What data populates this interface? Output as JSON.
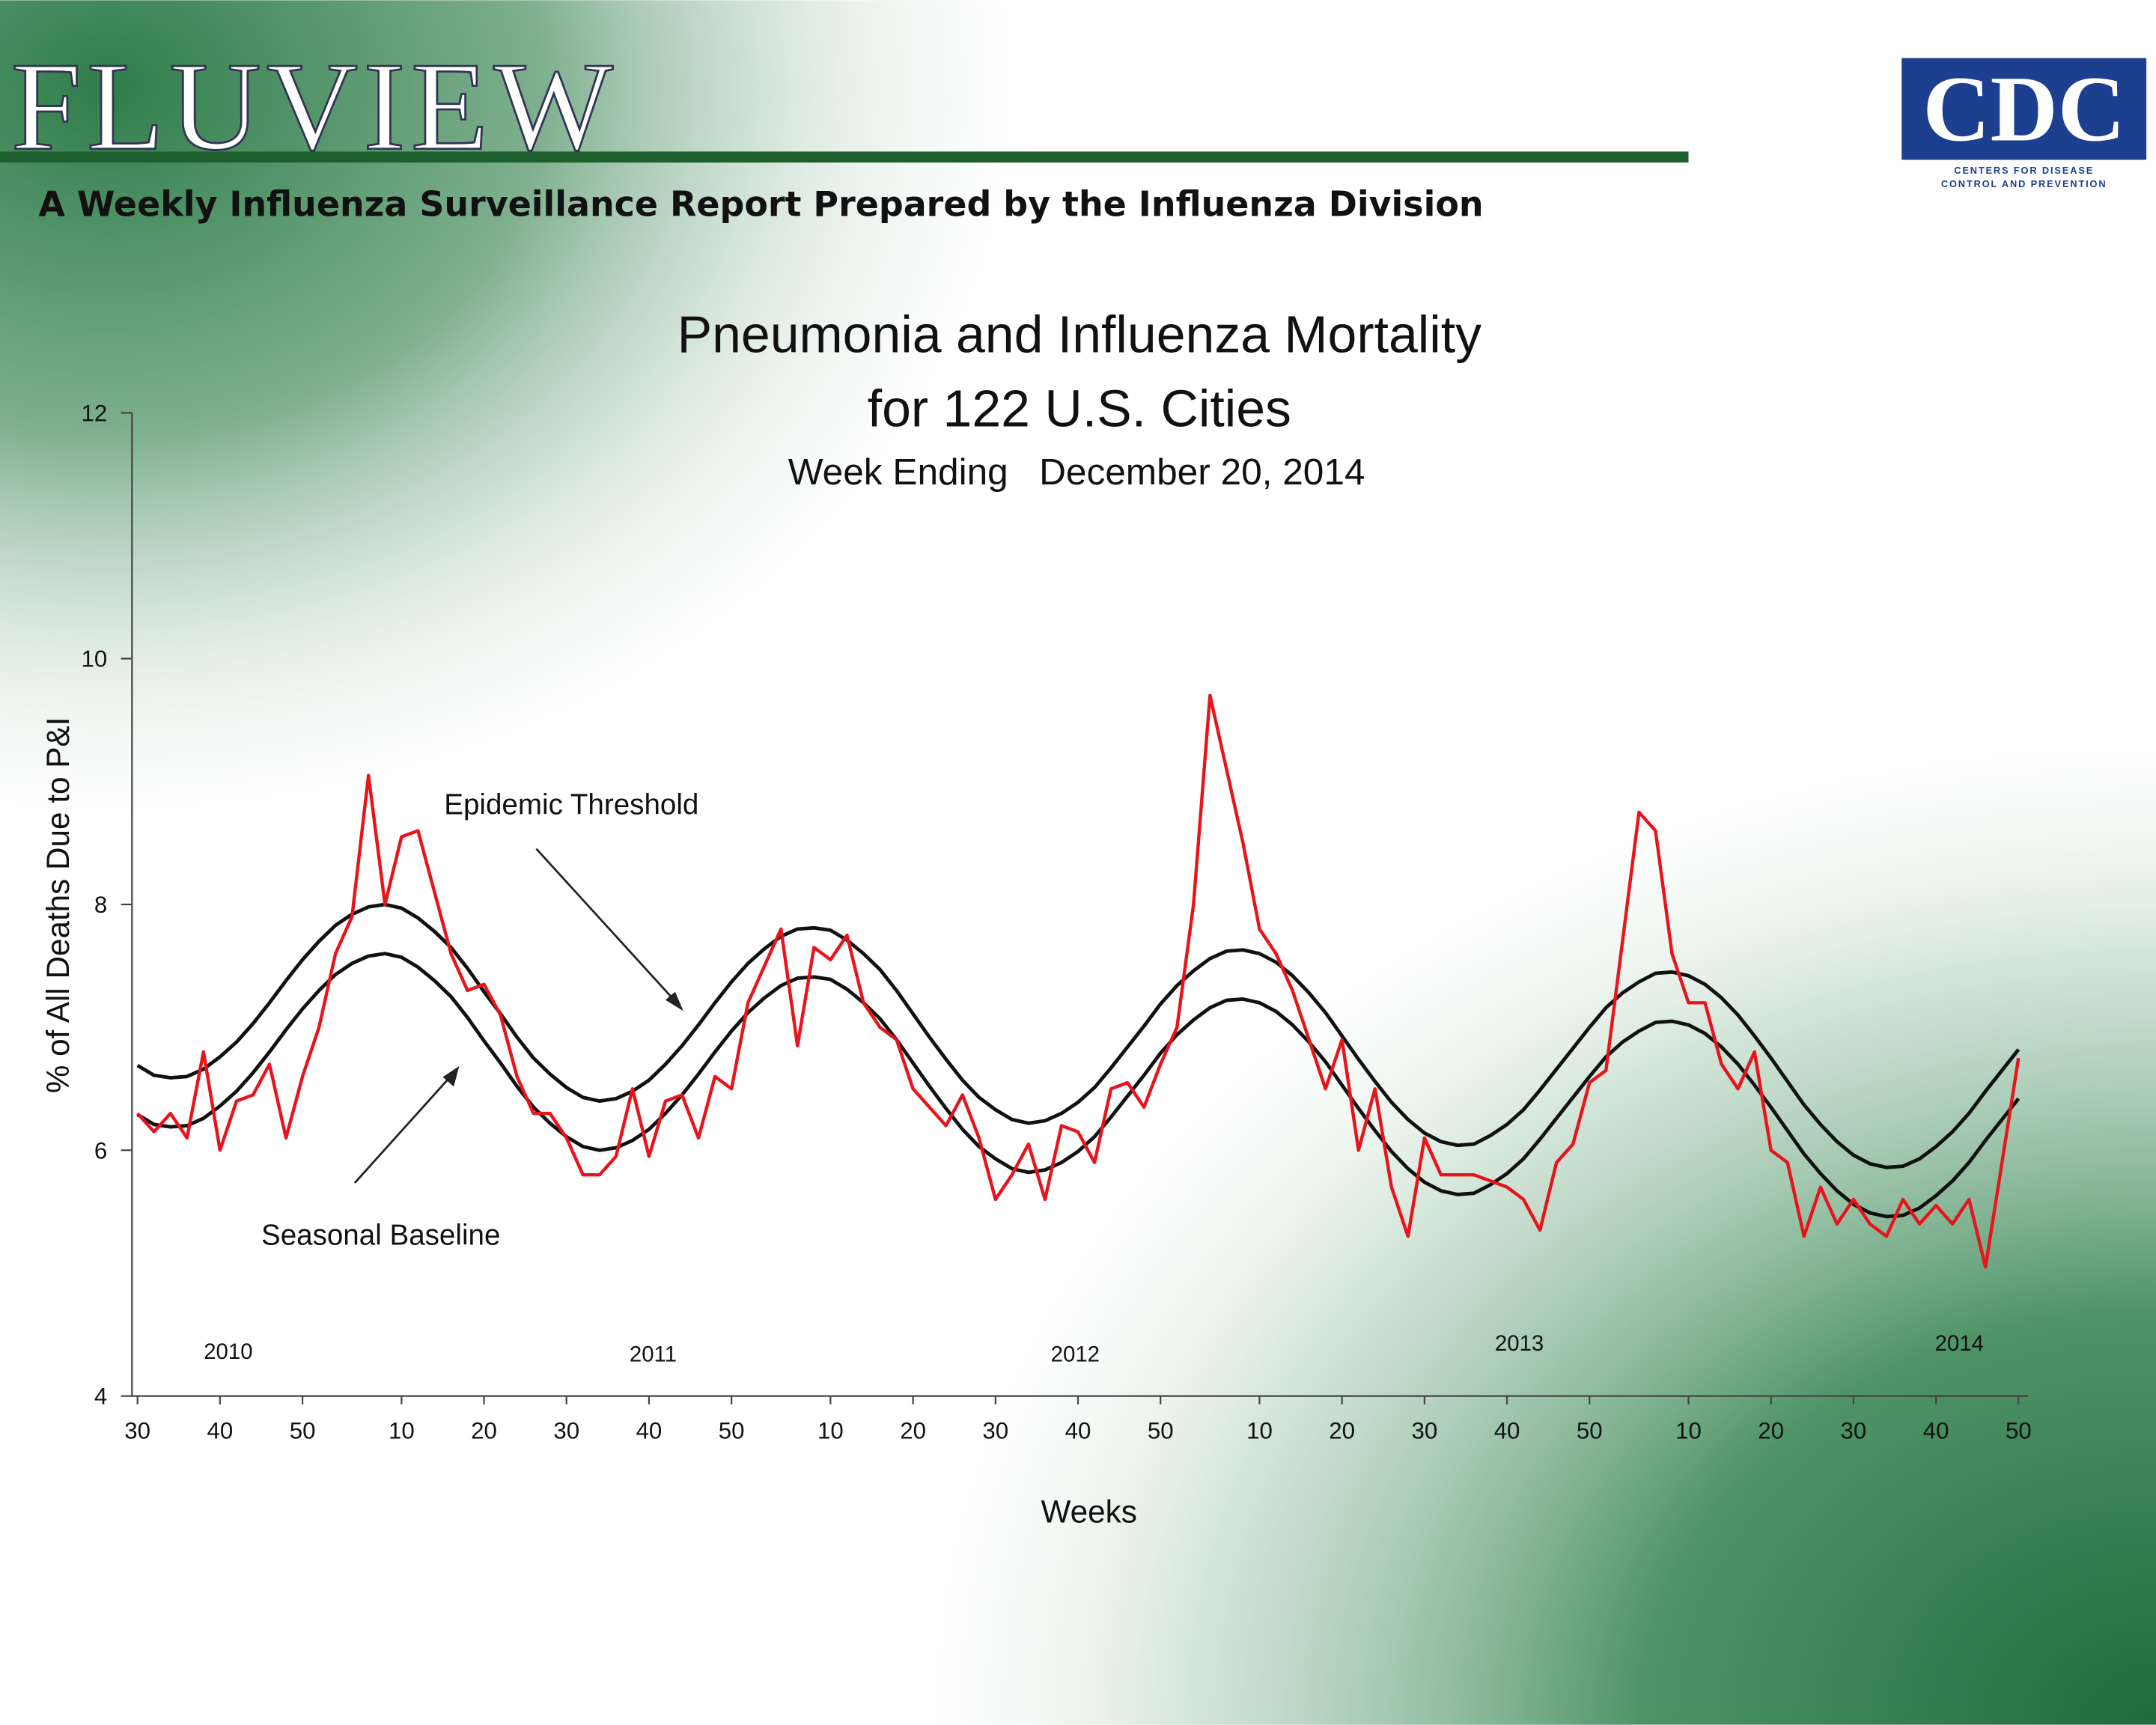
{
  "header": {
    "logo": "FLUVIEW",
    "tagline": "A Weekly Influenza Surveillance Report Prepared by the Influenza Division",
    "agency_logo": "CDC",
    "agency_name": [
      "CENTERS FOR DISEASE",
      "CONTROL AND PREVENTION"
    ]
  },
  "chart_data": {
    "type": "line",
    "title": [
      "Pneumonia and Influenza Mortality",
      "for 122 U.S. Cities"
    ],
    "subtitle": "Week Ending   December 20, 2014",
    "x_label": "Weeks",
    "y_label": "% of All Deaths Due to P&I",
    "year_labels": [
      "2010",
      "2011",
      "2012",
      "2013",
      "2014"
    ],
    "x": [
      0,
      2,
      4,
      6,
      8,
      10,
      12,
      14,
      16,
      18,
      20,
      22,
      24,
      26,
      28,
      30,
      32,
      34,
      36,
      38,
      40,
      42,
      44,
      46,
      48,
      50,
      52,
      54,
      56,
      58,
      60,
      62,
      64,
      66,
      68,
      70,
      72,
      74,
      76,
      78,
      80,
      82,
      84,
      86,
      88,
      90,
      92,
      94,
      96,
      98,
      100,
      102,
      104,
      106,
      108,
      110,
      112,
      114,
      116,
      118,
      120,
      122,
      124,
      126,
      128,
      130,
      132,
      134,
      136,
      138,
      140,
      142,
      144,
      146,
      148,
      150,
      152,
      154,
      156,
      158,
      160,
      162,
      164,
      166,
      168,
      170,
      172,
      174,
      176,
      178,
      180,
      182,
      184,
      186,
      188,
      190,
      192,
      194,
      196,
      198,
      200,
      202,
      204,
      206,
      208,
      210,
      212,
      214,
      216,
      218,
      220,
      222,
      224,
      226,
      228
    ],
    "xlim": [
      0,
      228
    ],
    "xticks": [
      {
        "value": 0,
        "label": "30"
      },
      {
        "value": 10,
        "label": "40"
      },
      {
        "value": 20,
        "label": "50"
      },
      {
        "value": 32,
        "label": "10"
      },
      {
        "value": 42,
        "label": "20"
      },
      {
        "value": 52,
        "label": "30"
      },
      {
        "value": 62,
        "label": "40"
      },
      {
        "value": 72,
        "label": "50"
      },
      {
        "value": 84,
        "label": "10"
      },
      {
        "value": 94,
        "label": "20"
      },
      {
        "value": 104,
        "label": "30"
      },
      {
        "value": 114,
        "label": "40"
      },
      {
        "value": 124,
        "label": "50"
      },
      {
        "value": 136,
        "label": "10"
      },
      {
        "value": 146,
        "label": "20"
      },
      {
        "value": 156,
        "label": "30"
      },
      {
        "value": 166,
        "label": "40"
      },
      {
        "value": 176,
        "label": "50"
      },
      {
        "value": 188,
        "label": "10"
      },
      {
        "value": 198,
        "label": "20"
      },
      {
        "value": 208,
        "label": "30"
      },
      {
        "value": 218,
        "label": "40"
      },
      {
        "value": 228,
        "label": "50"
      }
    ],
    "ylim": [
      4,
      12
    ],
    "yticks": [
      4,
      6,
      8,
      10,
      12
    ],
    "series": [
      {
        "color": "#e8141b",
        "values": [
          6.3,
          6.15,
          6.3,
          6.1,
          6.8,
          6.0,
          6.4,
          6.45,
          6.7,
          6.1,
          6.6,
          7.0,
          7.6,
          7.9,
          9.05,
          8.0,
          8.55,
          8.6,
          8.1,
          7.6,
          7.3,
          7.35,
          7.1,
          6.6,
          6.3,
          6.3,
          6.1,
          5.8,
          5.8,
          5.95,
          6.5,
          5.95,
          6.4,
          6.45,
          6.1,
          6.6,
          6.5,
          7.2,
          7.5,
          7.8,
          6.85,
          7.65,
          7.55,
          7.75,
          7.2,
          7.0,
          6.9,
          6.5,
          6.35,
          6.2,
          6.45,
          6.1,
          5.6,
          5.8,
          6.05,
          5.6,
          6.2,
          6.15,
          5.9,
          6.5,
          6.55,
          6.35,
          6.7,
          7.0,
          8.0,
          9.7,
          9.1,
          8.5,
          7.8,
          7.6,
          7.3,
          6.9,
          6.5,
          6.9,
          6.0,
          6.5,
          5.7,
          5.3,
          6.1,
          5.8,
          5.8,
          5.8,
          5.75,
          5.7,
          5.6,
          5.35,
          5.9,
          6.05,
          6.55,
          6.65,
          7.7,
          8.75,
          8.6,
          7.6,
          7.2,
          7.2,
          6.7,
          6.5,
          6.8,
          6.0,
          5.9,
          5.3,
          5.7,
          5.4,
          5.6,
          5.4,
          5.3,
          5.6,
          5.4,
          5.55,
          5.4,
          5.6,
          5.05,
          5.9,
          6.75
        ]
      },
      {
        "name": "Epidemic Threshold",
        "color": "#111111",
        "values": [
          6.69,
          6.61,
          6.59,
          6.6,
          6.66,
          6.76,
          6.88,
          7.03,
          7.2,
          7.38,
          7.55,
          7.7,
          7.83,
          7.92,
          7.98,
          8.0,
          7.97,
          7.89,
          7.78,
          7.65,
          7.48,
          7.29,
          7.11,
          6.92,
          6.75,
          6.62,
          6.51,
          6.43,
          6.4,
          6.42,
          6.48,
          6.57,
          6.7,
          6.85,
          7.02,
          7.2,
          7.37,
          7.52,
          7.64,
          7.74,
          7.8,
          7.81,
          7.79,
          7.71,
          7.6,
          7.47,
          7.3,
          7.11,
          6.92,
          6.74,
          6.57,
          6.43,
          6.33,
          6.25,
          6.22,
          6.24,
          6.3,
          6.39,
          6.51,
          6.67,
          6.84,
          7.01,
          7.19,
          7.34,
          7.46,
          7.56,
          7.62,
          7.63,
          7.6,
          7.53,
          7.42,
          7.28,
          7.12,
          6.93,
          6.74,
          6.56,
          6.39,
          6.25,
          6.14,
          6.07,
          6.04,
          6.05,
          6.12,
          6.21,
          6.33,
          6.49,
          6.66,
          6.83,
          7.0,
          7.16,
          7.28,
          7.37,
          7.44,
          7.45,
          7.42,
          7.35,
          7.24,
          7.1,
          6.93,
          6.75,
          6.56,
          6.37,
          6.21,
          6.07,
          5.96,
          5.89,
          5.86,
          5.87,
          5.93,
          6.03,
          6.15,
          6.3,
          6.48,
          6.65,
          6.82
        ]
      },
      {
        "name": "Seasonal Baseline",
        "color": "#111111",
        "values": [
          6.29,
          6.21,
          6.19,
          6.2,
          6.26,
          6.36,
          6.48,
          6.63,
          6.8,
          6.98,
          7.15,
          7.3,
          7.43,
          7.52,
          7.58,
          7.6,
          7.57,
          7.49,
          7.38,
          7.25,
          7.08,
          6.89,
          6.71,
          6.52,
          6.35,
          6.22,
          6.11,
          6.03,
          6.0,
          6.02,
          6.08,
          6.17,
          6.3,
          6.45,
          6.62,
          6.8,
          6.97,
          7.12,
          7.24,
          7.34,
          7.4,
          7.41,
          7.39,
          7.31,
          7.2,
          7.07,
          6.9,
          6.71,
          6.52,
          6.34,
          6.17,
          6.03,
          5.93,
          5.85,
          5.82,
          5.84,
          5.9,
          5.99,
          6.11,
          6.27,
          6.44,
          6.61,
          6.79,
          6.94,
          7.06,
          7.16,
          7.22,
          7.23,
          7.2,
          7.13,
          7.02,
          6.88,
          6.72,
          6.53,
          6.34,
          6.16,
          5.99,
          5.85,
          5.74,
          5.67,
          5.64,
          5.65,
          5.72,
          5.81,
          5.93,
          6.09,
          6.26,
          6.43,
          6.6,
          6.76,
          6.88,
          6.97,
          7.04,
          7.05,
          7.02,
          6.95,
          6.84,
          6.7,
          6.53,
          6.35,
          6.16,
          5.97,
          5.81,
          5.67,
          5.56,
          5.49,
          5.46,
          5.47,
          5.53,
          5.63,
          5.75,
          5.9,
          6.08,
          6.25,
          6.42
        ]
      }
    ]
  }
}
